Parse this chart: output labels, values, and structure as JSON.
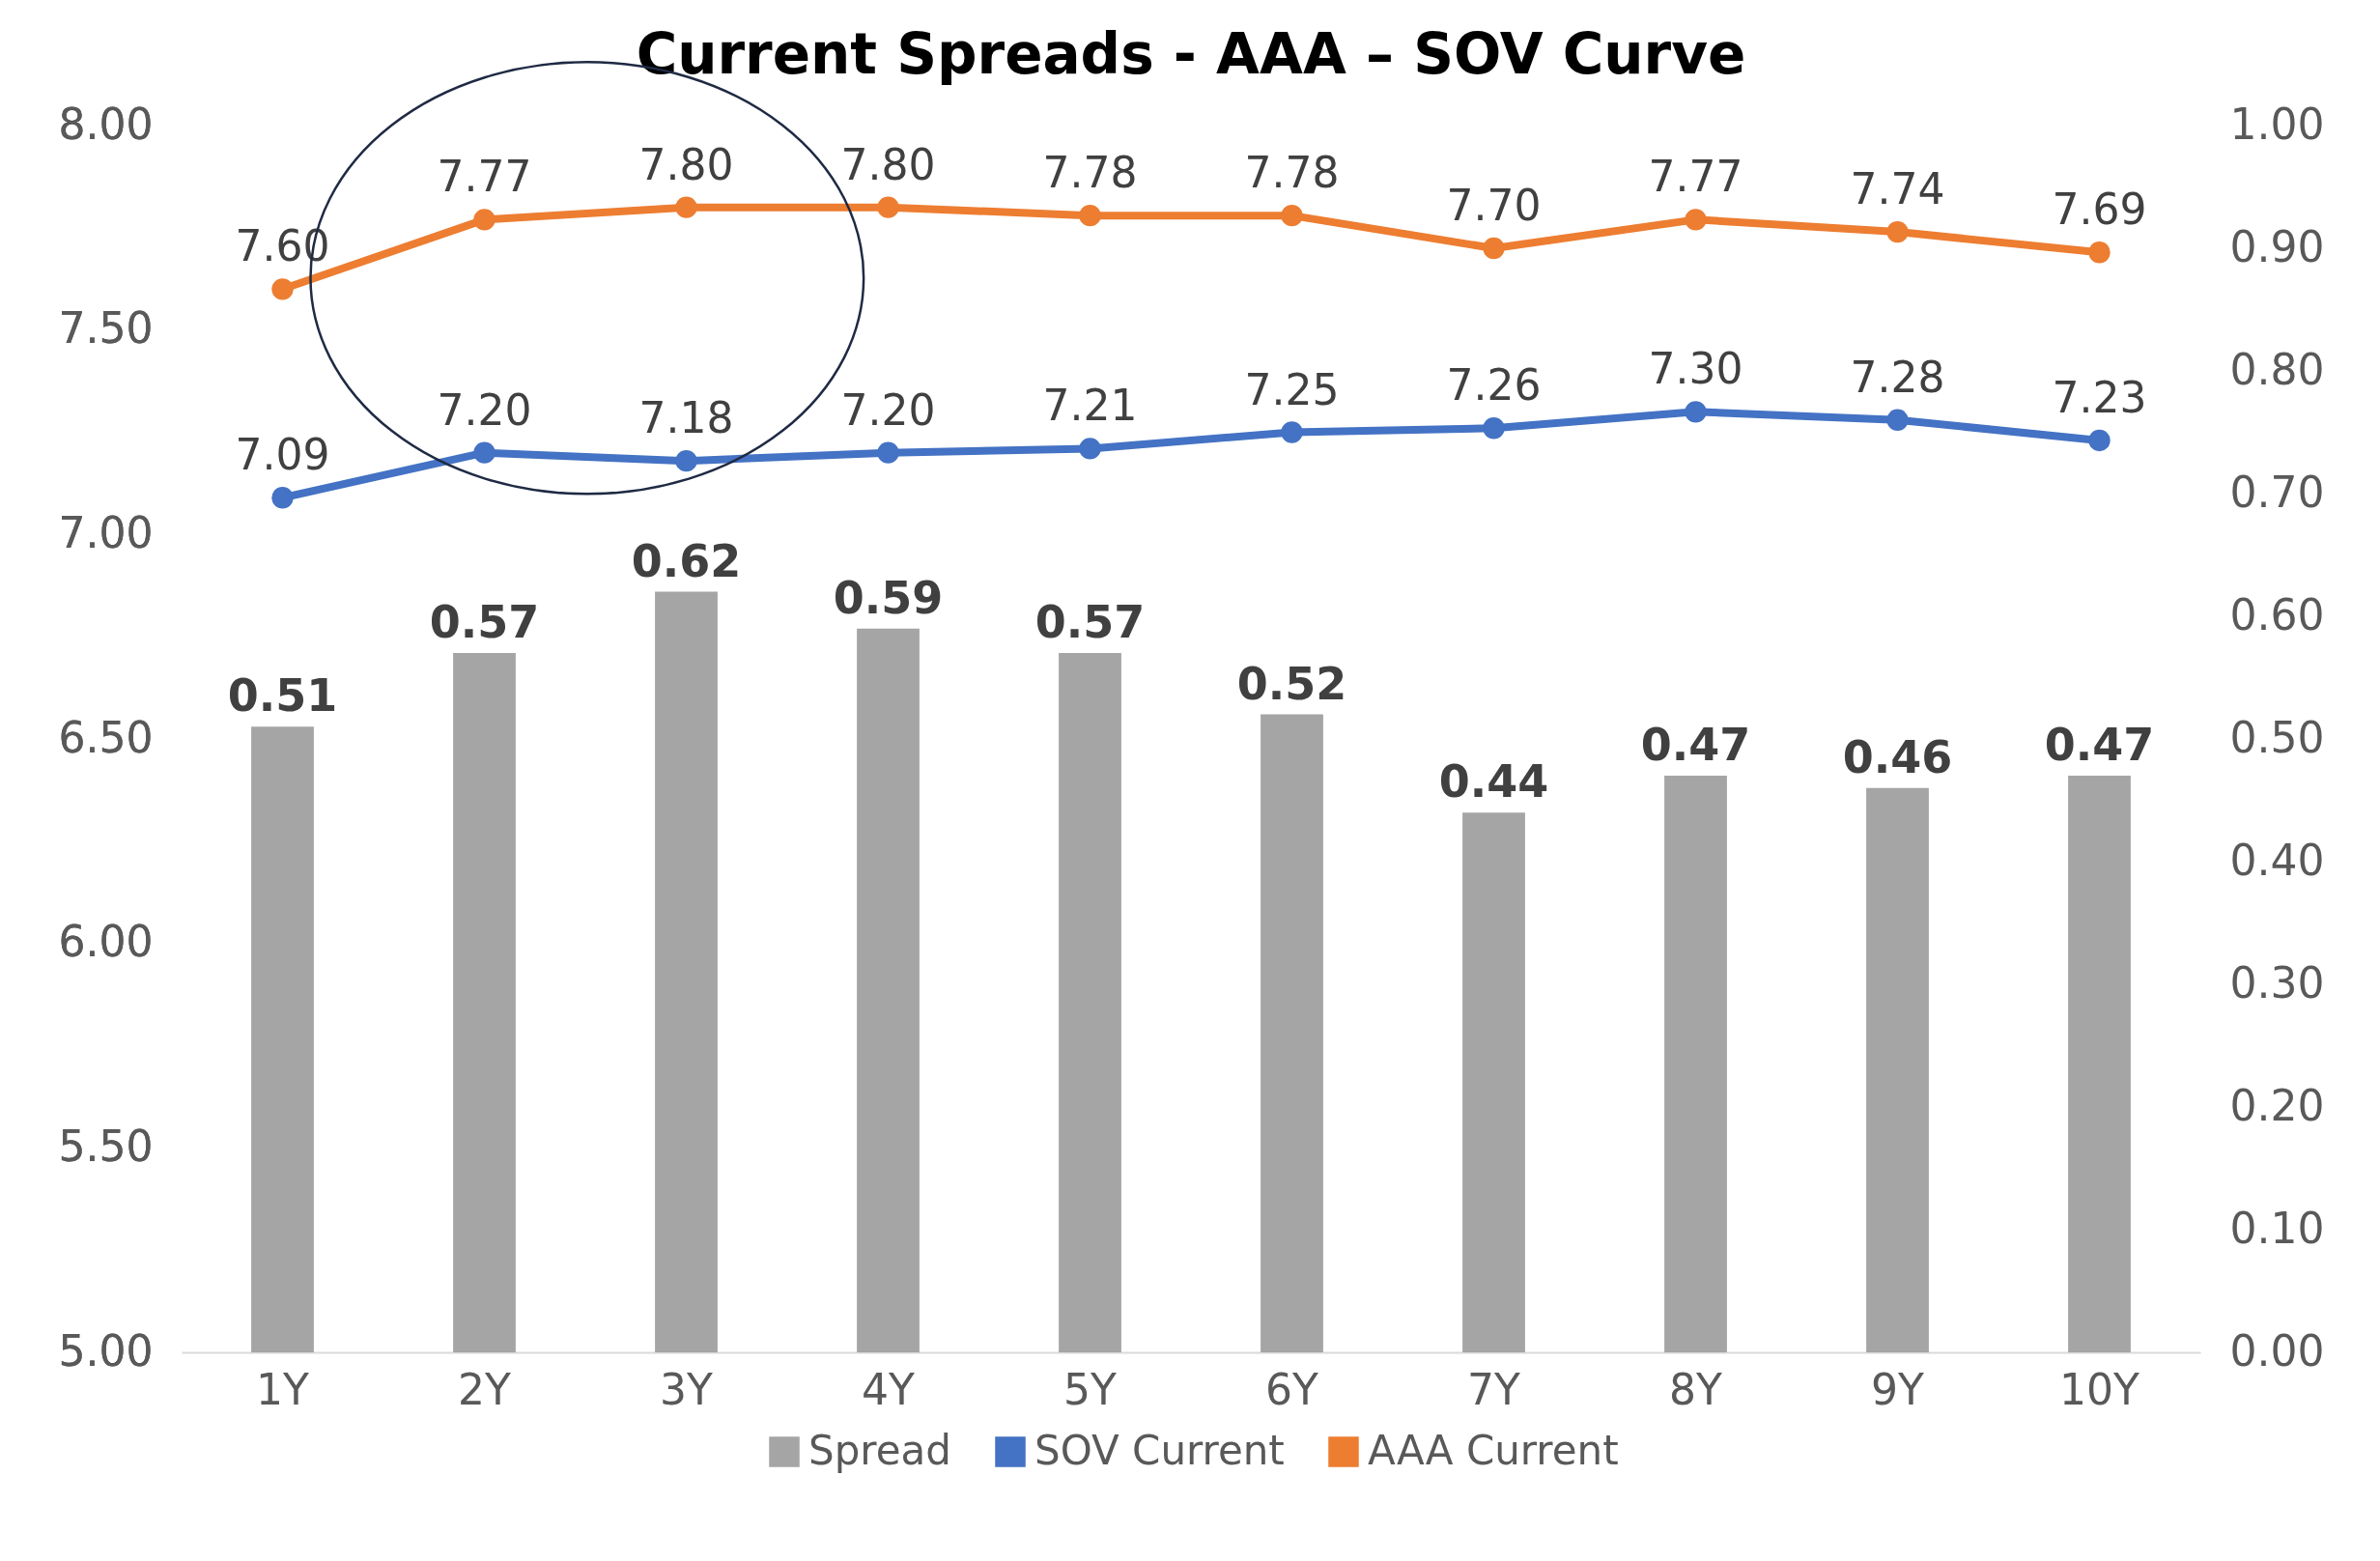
{
  "chart_data": {
    "type": "bar",
    "title": "Current Spreads - AAA – SOV Curve",
    "categories": [
      "1Y",
      "2Y",
      "3Y",
      "4Y",
      "5Y",
      "6Y",
      "7Y",
      "8Y",
      "9Y",
      "10Y"
    ],
    "series": [
      {
        "name": "Spread",
        "axis": "y2",
        "color": "#a5a5a5",
        "values": [
          0.51,
          0.57,
          0.62,
          0.59,
          0.57,
          0.52,
          0.44,
          0.47,
          0.46,
          0.47
        ],
        "value_labels": [
          "0.51",
          "0.57",
          "0.62",
          "0.59",
          "0.57",
          "0.52",
          "0.44",
          "0.47",
          "0.46",
          "0.47"
        ]
      },
      {
        "name": "SOV Current",
        "type": "line",
        "color": "#4472c4",
        "values": [
          7.09,
          7.2,
          7.18,
          7.2,
          7.21,
          7.25,
          7.26,
          7.3,
          7.28,
          7.23
        ],
        "value_labels": [
          "7.09",
          "7.20",
          "7.18",
          "7.20",
          "7.21",
          "7.25",
          "7.26",
          "7.30",
          "7.28",
          "7.23"
        ]
      },
      {
        "name": "AAA Current",
        "type": "line",
        "color": "#ed7d31",
        "values": [
          7.6,
          7.77,
          7.8,
          7.8,
          7.78,
          7.78,
          7.7,
          7.77,
          7.74,
          7.69
        ],
        "value_labels": [
          "7.60",
          "7.77",
          "7.80",
          "7.80",
          "7.78",
          "7.78",
          "7.70",
          "7.77",
          "7.74",
          "7.69"
        ]
      }
    ],
    "ylim": [
      5,
      8
    ],
    "yticks": [
      {
        "value": 5,
        "label": "5.00"
      },
      {
        "value": 5.5,
        "label": "5.50"
      },
      {
        "value": 6,
        "label": "6.00"
      },
      {
        "value": 6.5,
        "label": "6.50"
      },
      {
        "value": 7,
        "label": "7.00"
      },
      {
        "value": 7.5,
        "label": "7.50"
      },
      {
        "value": 8,
        "label": "8.00"
      }
    ],
    "y2lim": [
      0,
      1
    ],
    "y2ticks": [
      {
        "value": 0,
        "label": "0.00"
      },
      {
        "value": 0.1,
        "label": "0.10"
      },
      {
        "value": 0.2,
        "label": "0.20"
      },
      {
        "value": 0.3,
        "label": "0.30"
      },
      {
        "value": 0.4,
        "label": "0.40"
      },
      {
        "value": 0.5,
        "label": "0.50"
      },
      {
        "value": 0.6,
        "label": "0.60"
      },
      {
        "value": 0.7,
        "label": "0.70"
      },
      {
        "value": 0.8,
        "label": "0.80"
      },
      {
        "value": 0.9,
        "label": "0.90"
      },
      {
        "value": 1,
        "label": "1.00"
      }
    ],
    "grid": false,
    "legend": "bottom",
    "marker": "circle",
    "line_style": "solid"
  }
}
